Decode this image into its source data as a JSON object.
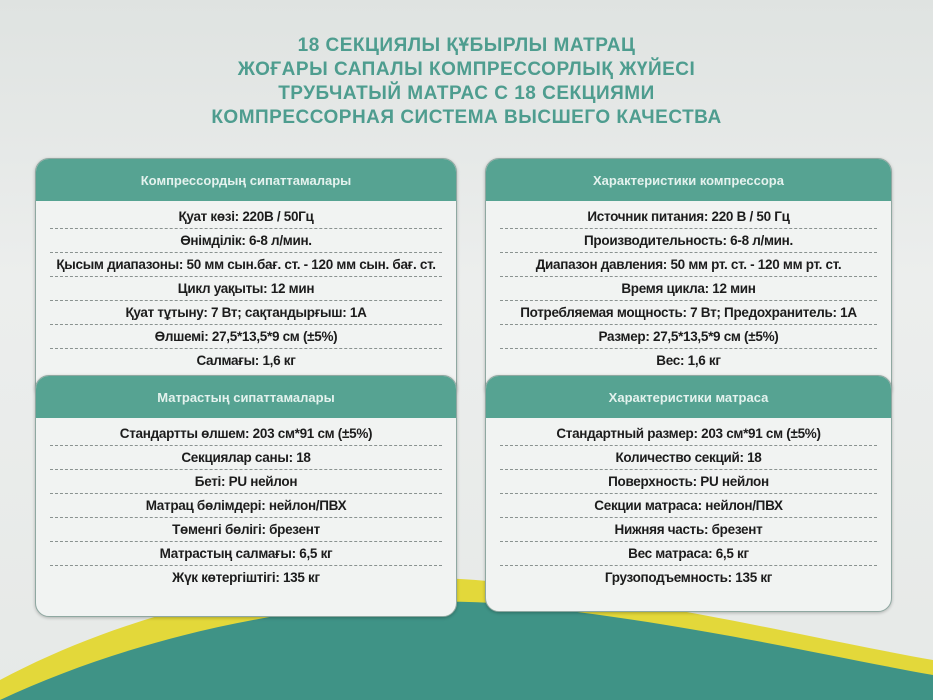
{
  "headings": [
    "18 СЕКЦИЯЛЫ ҚҰБЫРЛЫ МАТРАЦ",
    "ЖОҒАРЫ САПАЛЫ КОМПРЕССОРЛЫҚ ЖҮЙЕСІ",
    "ТРУБЧАТЫЙ МАТРАС С 18 СЕКЦИЯМИ",
    "КОМПРЕССОРНАЯ СИСТЕМА ВЫСШЕГО КАЧЕСТВА"
  ],
  "colors": {
    "teal": "#56a392",
    "yellow": "#e3d83a",
    "heading_text": "#4e9d8f"
  },
  "panels": [
    {
      "title": "Компрессордың сипаттамалары",
      "rows": [
        "Қуат көзі: 220В / 50Гц",
        "Өнімділік: 6-8 л/мин.",
        "Қысым диапазоны: 50 мм сын.бағ. ст. - 120 мм сын. бағ. ст.",
        "Цикл уақыты: 12 мин",
        "Қуат тұтыну: 7 Вт; сақтандырғыш: 1А",
        "Өлшемі: 27,5*13,5*9 см (±5%)",
        "Салмағы: 1,6 кг"
      ]
    },
    {
      "title": "Характеристики компрессора",
      "rows": [
        "Источник питания: 220 В / 50 Гц",
        "Производительность: 6-8 л/мин.",
        "Диапазон давления: 50 мм рт. ст. - 120 мм рт. ст.",
        "Время цикла: 12 мин",
        "Потребляемая мощность: 7 Вт; Предохранитель: 1А",
        "Размер: 27,5*13,5*9 см (±5%)",
        "Вес: 1,6 кг"
      ]
    },
    {
      "title": "Матрастың сипаттамалары",
      "rows": [
        "Стандартты өлшем: 203 см*91 см (±5%)",
        "Секциялар саны: 18",
        "Беті: PU нейлон",
        "Матрац бөлімдері: нейлон/ПВХ",
        "Төменгі бөлігі: брезент",
        "Матрастың салмағы: 6,5 кг",
        "Жүк көтергіштігі: 135 кг"
      ]
    },
    {
      "title": "Характеристики матраса",
      "rows": [
        "Стандартный размер: 203 см*91 см (±5%)",
        "Количество секций: 18",
        "Поверхность: PU нейлон",
        "Секции матраса: нейлон/ПВХ",
        "Нижняя часть: брезент",
        "Вес матраса: 6,5 кг",
        "Грузоподъемность: 135 кг"
      ]
    }
  ]
}
